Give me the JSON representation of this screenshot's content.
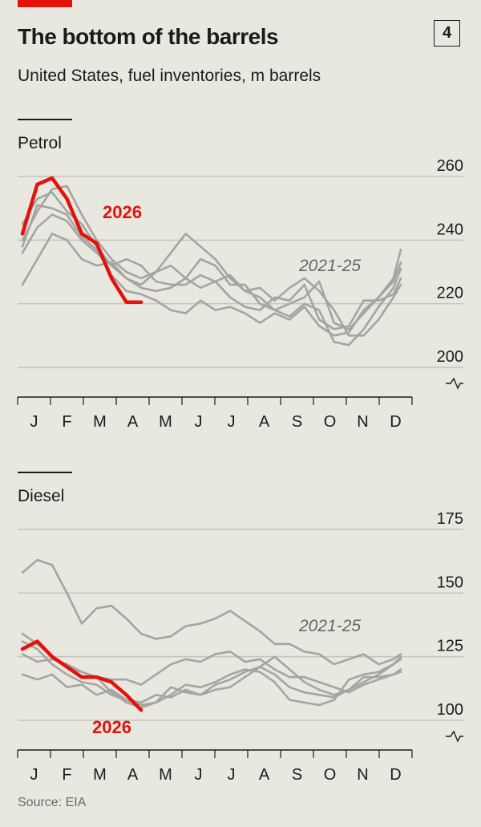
{
  "header": {
    "title": "The bottom of the barrels",
    "badge": "4",
    "subtitle": "United States, fuel inventories, m barrels"
  },
  "source": "Source: EIA",
  "colors": {
    "current": "#e3120b",
    "history": "#a4a4a4",
    "grid": "#c4c4bc",
    "axis": "#1a1a1a",
    "background": "#e9e8e0"
  },
  "chart_data": [
    {
      "type": "line",
      "title": "Petrol",
      "ylim": [
        200,
        260
      ],
      "yticks": [
        "260",
        "240",
        "220",
        "200"
      ],
      "ytick_values": [
        260,
        240,
        220,
        200
      ],
      "x_months": [
        "J",
        "F",
        "M",
        "A",
        "M",
        "J",
        "J",
        "A",
        "S",
        "O",
        "N",
        "D"
      ],
      "x_unit": "week",
      "x_range": [
        1,
        52
      ],
      "history_label": "2021-25",
      "current_label": "2026",
      "current": {
        "name": "2026",
        "x": [
          1,
          3,
          5,
          7,
          9,
          11,
          13,
          15,
          17
        ],
        "y": [
          242,
          257.5,
          259.5,
          253,
          242,
          239,
          228,
          220.5,
          220.5
        ]
      },
      "history": [
        {
          "x": [
            1,
            3,
            5,
            7,
            9,
            11,
            13,
            15,
            17,
            19,
            21,
            23,
            25,
            27,
            29,
            31,
            33,
            35,
            37,
            39,
            41,
            43,
            45,
            47,
            49,
            51,
            52
          ],
          "y": [
            238,
            251,
            250,
            248,
            241,
            237,
            229,
            224,
            223,
            221,
            218,
            217,
            221,
            218,
            219,
            217,
            214,
            217,
            215,
            219,
            213,
            210,
            211,
            218,
            222,
            228,
            237
          ]
        },
        {
          "x": [
            1,
            3,
            5,
            7,
            9,
            11,
            13,
            15,
            17,
            19,
            21,
            23,
            25,
            27,
            29,
            31,
            33,
            35,
            37,
            39,
            41,
            43,
            45,
            47,
            49,
            51,
            52
          ],
          "y": [
            226,
            234,
            242,
            240,
            234,
            232,
            233,
            228,
            226,
            230,
            232,
            228,
            234,
            232,
            226,
            226,
            220,
            218,
            220,
            222,
            227,
            214,
            212,
            217,
            222,
            227,
            233
          ]
        },
        {
          "x": [
            1,
            3,
            5,
            7,
            9,
            11,
            13,
            15,
            17,
            19,
            21,
            23,
            25,
            27,
            29,
            31,
            33,
            35,
            37,
            39,
            41,
            43,
            45,
            47,
            49,
            51,
            52
          ],
          "y": [
            245,
            253,
            255,
            249,
            245,
            238,
            232,
            228,
            225,
            224,
            225,
            228,
            225,
            227,
            229,
            224,
            222,
            218,
            216,
            220,
            218,
            208,
            207,
            212,
            219,
            225,
            231
          ]
        },
        {
          "x": [
            1,
            3,
            5,
            7,
            9,
            11,
            13,
            15,
            17,
            19,
            21,
            23,
            25,
            27,
            29,
            31,
            33,
            35,
            37,
            39,
            41,
            43,
            45,
            47,
            49,
            51,
            52
          ],
          "y": [
            240,
            249,
            256,
            257,
            248,
            240,
            234,
            230,
            228,
            230,
            236,
            242,
            238,
            234,
            228,
            224,
            225,
            221,
            225,
            228,
            224,
            218,
            210,
            210,
            215,
            222,
            226
          ]
        },
        {
          "x": [
            1,
            3,
            5,
            7,
            9,
            11,
            13,
            15,
            17,
            19,
            21,
            23,
            25,
            27,
            29,
            31,
            33,
            35,
            37,
            39,
            41,
            43,
            45,
            47,
            49,
            51,
            52
          ],
          "y": [
            236,
            244,
            248,
            246,
            240,
            236,
            232,
            234,
            232,
            227,
            226,
            226,
            229,
            227,
            222,
            219,
            218,
            222,
            221,
            226,
            215,
            212,
            213,
            221,
            221,
            223,
            228
          ]
        }
      ]
    },
    {
      "type": "line",
      "title": "Diesel",
      "ylim": [
        100,
        175
      ],
      "yticks": [
        "175",
        "150",
        "125",
        "100"
      ],
      "ytick_values": [
        175,
        150,
        125,
        100
      ],
      "x_months": [
        "J",
        "F",
        "M",
        "A",
        "M",
        "J",
        "J",
        "A",
        "S",
        "O",
        "N",
        "D"
      ],
      "x_unit": "week",
      "x_range": [
        1,
        52
      ],
      "history_label": "2021-25",
      "current_label": "2026",
      "current": {
        "name": "2026",
        "x": [
          1,
          3,
          5,
          7,
          9,
          11,
          13,
          15,
          17
        ],
        "y": [
          128,
          131,
          125,
          121,
          117,
          117,
          115,
          110,
          104
        ]
      },
      "history": [
        {
          "x": [
            1,
            3,
            5,
            7,
            9,
            11,
            13,
            15,
            17,
            19,
            21,
            23,
            25,
            27,
            29,
            31,
            33,
            35,
            37,
            39,
            41,
            43,
            45,
            47,
            49,
            51,
            52
          ],
          "y": [
            158,
            163,
            161,
            150,
            138,
            144,
            145,
            140,
            134,
            132,
            133,
            137,
            138,
            140,
            143,
            139,
            135,
            130,
            130,
            127,
            126,
            122,
            124,
            126,
            122,
            124,
            126
          ]
        },
        {
          "x": [
            1,
            3,
            5,
            7,
            9,
            11,
            13,
            15,
            17,
            19,
            21,
            23,
            25,
            27,
            29,
            31,
            33,
            35,
            37,
            39,
            41,
            43,
            45,
            47,
            49,
            51,
            52
          ],
          "y": [
            134,
            130,
            125,
            121,
            119,
            117,
            111,
            107,
            105,
            107,
            113,
            111,
            110,
            114,
            116,
            119,
            121,
            125,
            120,
            115,
            112,
            110,
            112,
            115,
            118,
            122,
            125
          ]
        },
        {
          "x": [
            1,
            3,
            5,
            7,
            9,
            11,
            13,
            15,
            17,
            19,
            21,
            23,
            25,
            27,
            29,
            31,
            33,
            35,
            37,
            39,
            41,
            43,
            45,
            47,
            49,
            51,
            52
          ],
          "y": [
            131,
            128,
            122,
            118,
            115,
            114,
            110,
            108,
            106,
            107,
            110,
            114,
            113,
            115,
            118,
            120,
            119,
            115,
            108,
            107,
            106,
            108,
            116,
            118,
            119,
            122,
            124
          ]
        },
        {
          "x": [
            1,
            3,
            5,
            7,
            9,
            11,
            13,
            15,
            17,
            19,
            21,
            23,
            25,
            27,
            29,
            31,
            33,
            35,
            37,
            39,
            41,
            43,
            45,
            47,
            49,
            51,
            52
          ],
          "y": [
            118,
            116,
            118,
            113,
            114,
            110,
            112,
            108,
            107,
            110,
            109,
            112,
            110,
            112,
            113,
            117,
            121,
            118,
            113,
            111,
            110,
            109,
            112,
            117,
            117,
            118,
            120
          ]
        },
        {
          "x": [
            1,
            3,
            5,
            7,
            9,
            11,
            13,
            15,
            17,
            19,
            21,
            23,
            25,
            27,
            29,
            31,
            33,
            35,
            37,
            39,
            41,
            43,
            45,
            47,
            49,
            51,
            52
          ],
          "y": [
            126,
            123,
            124,
            122,
            119,
            117,
            116,
            116,
            114,
            118,
            122,
            124,
            123,
            126,
            127,
            123,
            124,
            120,
            117,
            117,
            115,
            113,
            111,
            114,
            116,
            118,
            119
          ]
        }
      ]
    }
  ]
}
